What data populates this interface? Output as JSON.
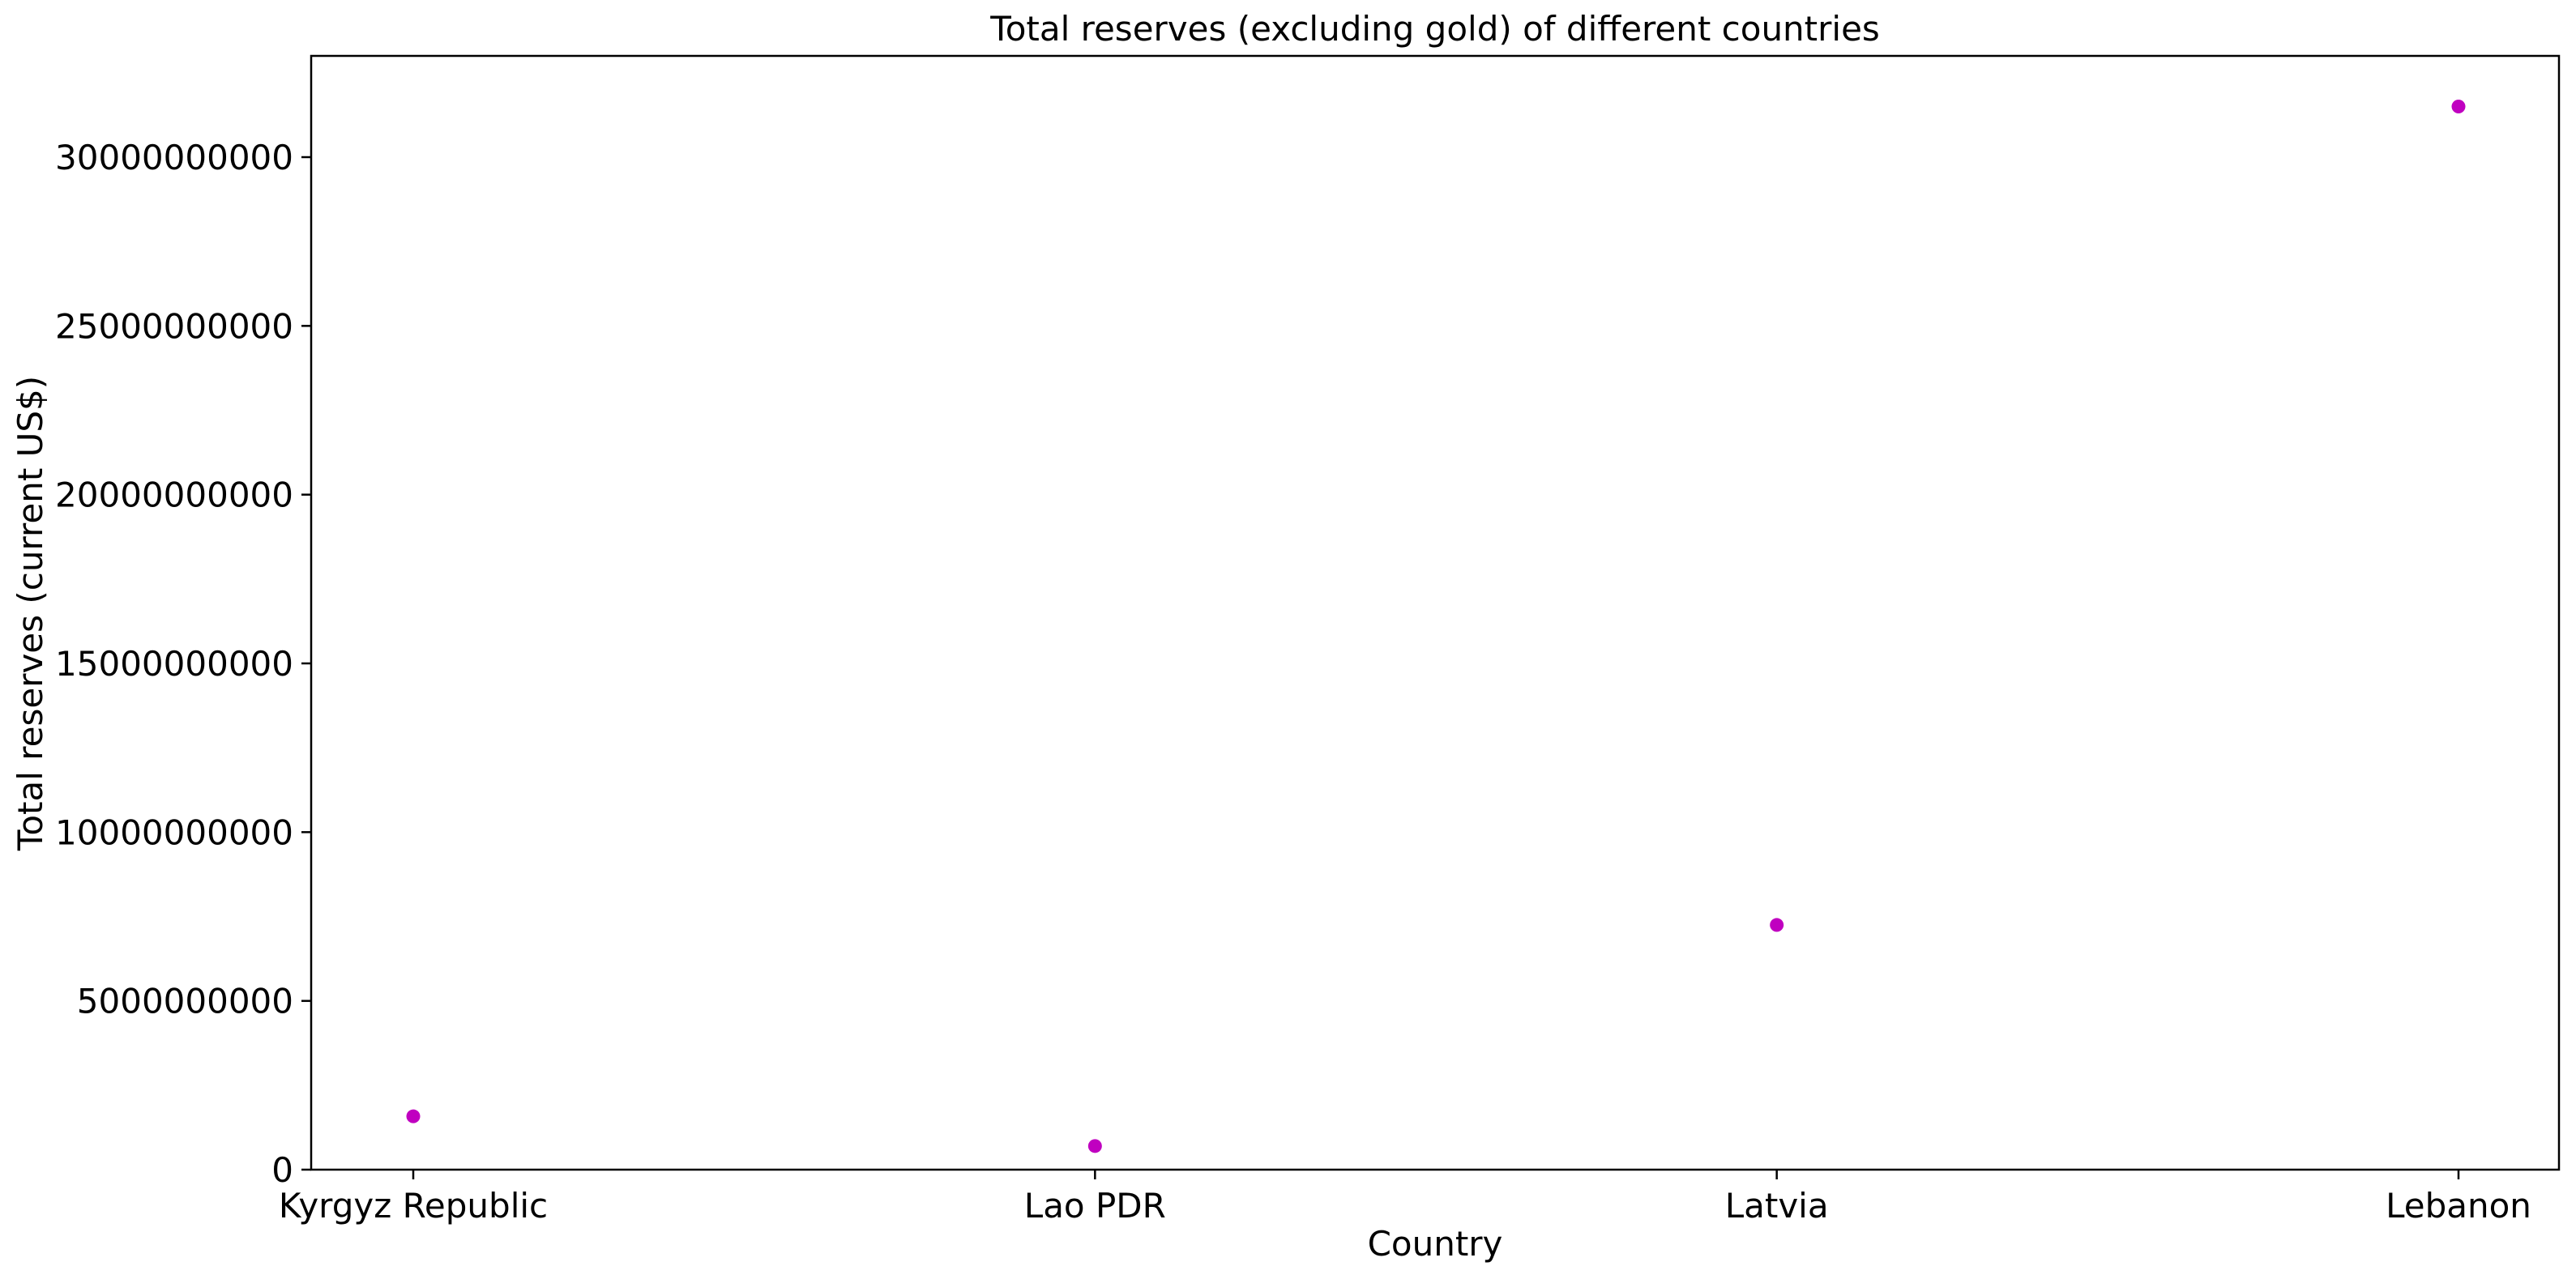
{
  "chart_data": {
    "type": "scatter",
    "title": "Total reserves (excluding gold) of different countries",
    "xlabel": "Country",
    "ylabel": "Total reserves (current US$)",
    "categories": [
      "Kyrgyz Republic",
      "Lao PDR",
      "Latvia",
      "Lebanon"
    ],
    "values": [
      1580000000,
      700000000,
      7250000000,
      31500000000
    ],
    "ylim": [
      0,
      33000000000
    ],
    "yticks": [
      0,
      5000000000,
      10000000000,
      15000000000,
      20000000000,
      25000000000,
      30000000000
    ],
    "ytick_labels": [
      "0",
      "5000000000",
      "10000000000",
      "15000000000",
      "20000000000",
      "25000000000",
      "30000000000"
    ],
    "marker_color": "#c000c0",
    "grid": false,
    "legend": "none"
  }
}
